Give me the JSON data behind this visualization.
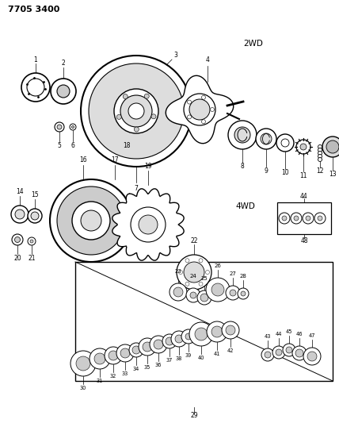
{
  "title": "7705 3400",
  "bg_color": "#ffffff",
  "label_2wd": "2WD",
  "label_4wd": "4WD",
  "fig_width": 4.28,
  "fig_height": 5.33,
  "dpi": 100
}
